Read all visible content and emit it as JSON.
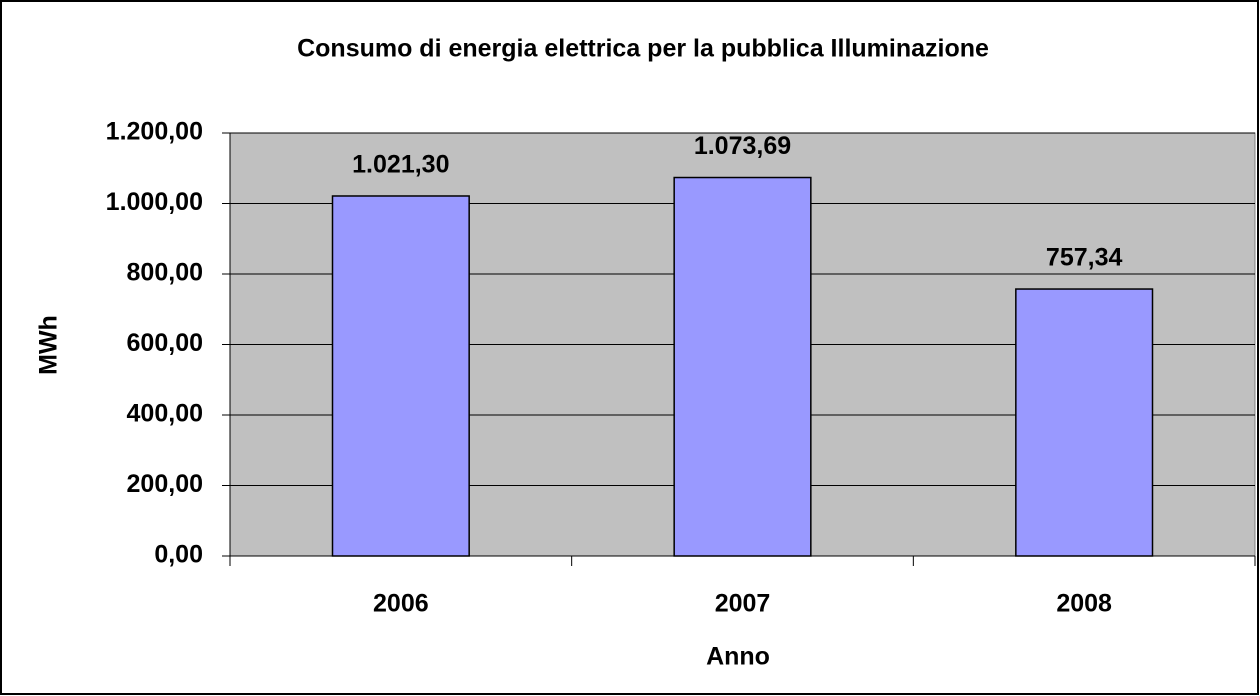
{
  "chart_data": {
    "type": "bar",
    "title": "Consumo di energia elettrica per la pubblica Illuminazione",
    "x_label": "Anno",
    "y_label": "MWh",
    "categories": [
      "2006",
      "2007",
      "2008"
    ],
    "values": [
      1021.3,
      1073.69,
      757.34
    ],
    "value_labels": [
      "1.021,30",
      "1.073,69",
      "757,34"
    ],
    "color": "#9999ff",
    "ylim": [
      0,
      1200
    ],
    "yticks": [
      {
        "value": 0,
        "label": "0,00"
      },
      {
        "value": 200,
        "label": "200,00"
      },
      {
        "value": 400,
        "label": "400,00"
      },
      {
        "value": 600,
        "label": "600,00"
      },
      {
        "value": 800,
        "label": "800,00"
      },
      {
        "value": 1000,
        "label": "1.000,00"
      },
      {
        "value": 1200,
        "label": "1.200,00"
      }
    ],
    "grid": true
  }
}
